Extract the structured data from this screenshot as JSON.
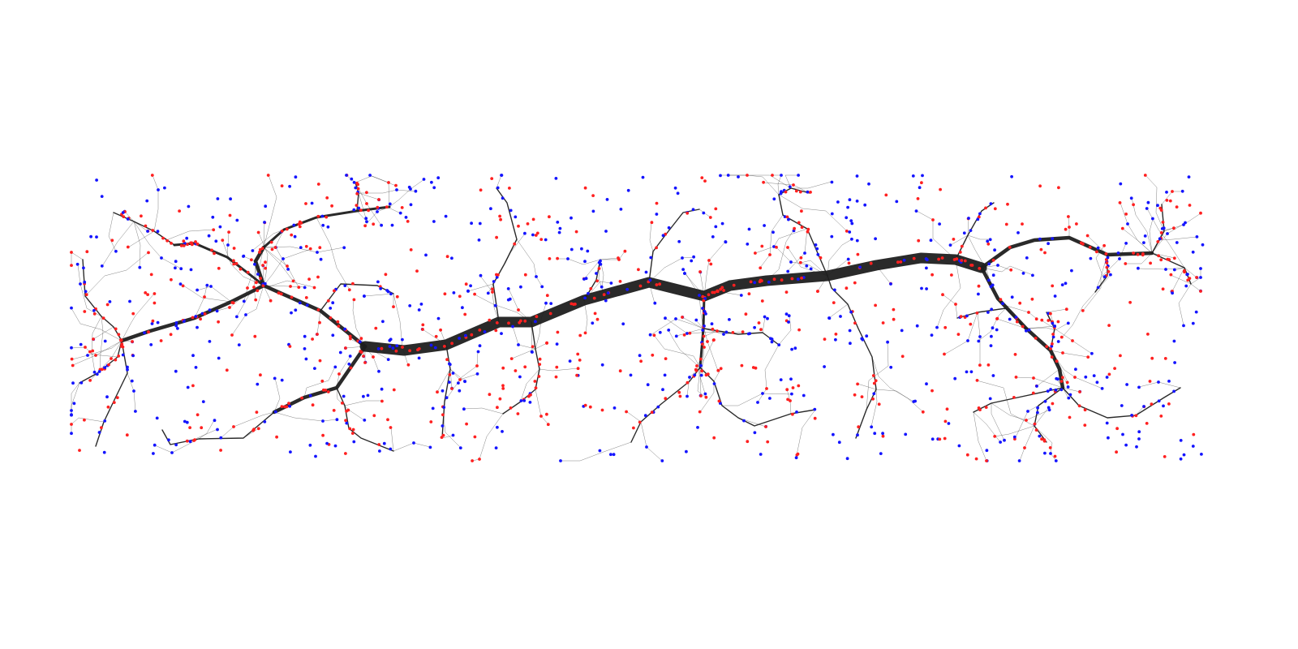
{
  "figure": {
    "type": "network-tree-diagram",
    "background": "#ffffff",
    "text": []
  },
  "colors": {
    "edge": "#1f1f1f",
    "node_red": "#ff2020",
    "node_blue": "#1414ff"
  },
  "legend": []
}
